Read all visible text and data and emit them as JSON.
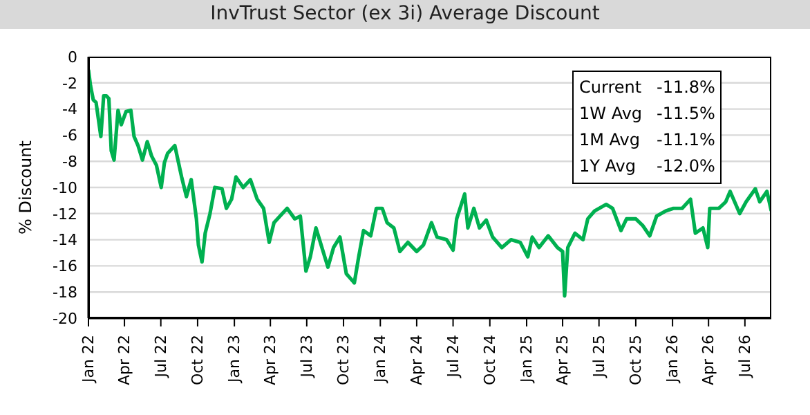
{
  "chart_data": {
    "type": "line",
    "title": "InvTrust Sector (ex 3i) Average Discount",
    "ylabel": "% Discount",
    "x": [
      "2022-01-01",
      "2022-01-06",
      "2022-01-13",
      "2022-01-20",
      "2022-02-01",
      "2022-02-08",
      "2022-02-15",
      "2022-02-21",
      "2022-02-27",
      "2022-03-06",
      "2022-03-16",
      "2022-03-24",
      "2022-04-05",
      "2022-04-17",
      "2022-04-25",
      "2022-05-05",
      "2022-05-16",
      "2022-05-28",
      "2022-06-08",
      "2022-06-20",
      "2022-07-02",
      "2022-07-10",
      "2022-07-18",
      "2022-08-05",
      "2022-08-22",
      "2022-09-03",
      "2022-09-15",
      "2022-09-28",
      "2022-10-03",
      "2022-10-12",
      "2022-10-20",
      "2022-11-01",
      "2022-11-13",
      "2022-12-01",
      "2022-12-12",
      "2022-12-25",
      "2023-01-05",
      "2023-01-23",
      "2023-02-10",
      "2023-02-27",
      "2023-03-15",
      "2023-03-29",
      "2023-04-10",
      "2023-04-25",
      "2023-05-13",
      "2023-06-01",
      "2023-06-15",
      "2023-06-29",
      "2023-07-10",
      "2023-07-24",
      "2023-08-08",
      "2023-08-23",
      "2023-09-06",
      "2023-09-22",
      "2023-10-08",
      "2023-10-28",
      "2023-11-08",
      "2023-11-20",
      "2023-12-08",
      "2023-12-22",
      "2024-01-06",
      "2024-01-18",
      "2024-02-04",
      "2024-02-19",
      "2024-03-10",
      "2024-04-01",
      "2024-04-18",
      "2024-05-08",
      "2024-05-22",
      "2024-06-15",
      "2024-07-01",
      "2024-07-10",
      "2024-07-30",
      "2024-08-07",
      "2024-08-22",
      "2024-09-05",
      "2024-09-22",
      "2024-10-08",
      "2024-10-31",
      "2024-11-23",
      "2024-12-16",
      "2025-01-04",
      "2025-01-15",
      "2025-02-01",
      "2025-02-24",
      "2025-03-19",
      "2025-04-01",
      "2025-04-06",
      "2025-04-14",
      "2025-05-02",
      "2025-05-22",
      "2025-06-03",
      "2025-06-20",
      "2025-07-19",
      "2025-08-04",
      "2025-08-25",
      "2025-09-08",
      "2025-10-01",
      "2025-10-18",
      "2025-11-05",
      "2025-11-22",
      "2025-12-15",
      "2026-01-03",
      "2026-01-25",
      "2026-02-15",
      "2026-02-27",
      "2026-03-18",
      "2026-03-30",
      "2026-04-04",
      "2026-04-27",
      "2026-05-14",
      "2026-05-25",
      "2026-06-18",
      "2026-07-04",
      "2026-07-27",
      "2026-08-07",
      "2026-08-25",
      "2026-09-05"
    ],
    "series": [
      {
        "color": "#00b050",
        "values": [
          -1.0,
          -2.2,
          -3.3,
          -3.5,
          -6.1,
          -3.0,
          -3.0,
          -3.2,
          -7.2,
          -7.9,
          -4.1,
          -5.2,
          -4.2,
          -4.1,
          -6.1,
          -6.8,
          -7.9,
          -6.5,
          -7.6,
          -8.3,
          -10.0,
          -8.1,
          -7.4,
          -6.8,
          -9.2,
          -10.7,
          -9.4,
          -12.4,
          -14.4,
          -15.7,
          -13.5,
          -12.0,
          -10.0,
          -10.1,
          -11.6,
          -10.9,
          -9.2,
          -10.0,
          -9.4,
          -10.9,
          -11.6,
          -14.2,
          -12.7,
          -12.2,
          -11.6,
          -12.4,
          -12.2,
          -16.4,
          -15.3,
          -13.1,
          -14.6,
          -16.1,
          -14.6,
          -13.8,
          -16.6,
          -17.3,
          -15.3,
          -13.3,
          -13.7,
          -11.6,
          -11.6,
          -12.7,
          -13.1,
          -14.9,
          -14.2,
          -14.9,
          -14.4,
          -12.7,
          -13.8,
          -14.0,
          -14.8,
          -12.4,
          -10.5,
          -13.1,
          -11.6,
          -13.1,
          -12.5,
          -13.8,
          -14.6,
          -14.0,
          -14.2,
          -15.3,
          -13.8,
          -14.6,
          -13.7,
          -14.6,
          -14.9,
          -18.3,
          -14.6,
          -13.5,
          -14.0,
          -12.4,
          -11.8,
          -11.3,
          -11.6,
          -13.3,
          -12.4,
          -12.4,
          -12.9,
          -13.7,
          -12.2,
          -11.8,
          -11.6,
          -11.6,
          -10.9,
          -13.5,
          -13.1,
          -14.6,
          -11.6,
          -11.6,
          -11.1,
          -10.3,
          -12.0,
          -11.1,
          -10.1,
          -11.1,
          -10.3,
          -11.8
        ]
      }
    ],
    "xlim": [
      "2022-01-01",
      "2026-09-05"
    ],
    "xticks": [
      {
        "value": "2022-01-01",
        "label": "Jan 22"
      },
      {
        "value": "2022-04-01",
        "label": "Apr 22"
      },
      {
        "value": "2022-07-01",
        "label": "Jul 22"
      },
      {
        "value": "2022-10-01",
        "label": "Oct 22"
      },
      {
        "value": "2023-01-01",
        "label": "Jan 23"
      },
      {
        "value": "2023-04-01",
        "label": "Apr 23"
      },
      {
        "value": "2023-07-01",
        "label": "Jul 23"
      },
      {
        "value": "2023-10-01",
        "label": "Oct 23"
      },
      {
        "value": "2024-01-01",
        "label": "Jan 24"
      },
      {
        "value": "2024-04-01",
        "label": "Apr 24"
      },
      {
        "value": "2024-07-01",
        "label": "Jul 24"
      },
      {
        "value": "2024-10-01",
        "label": "Oct 24"
      },
      {
        "value": "2025-01-01",
        "label": "Jan 25"
      },
      {
        "value": "2025-04-01",
        "label": "Apr 25"
      },
      {
        "value": "2025-07-01",
        "label": "Jul 25"
      },
      {
        "value": "2025-10-01",
        "label": "Oct 25"
      },
      {
        "value": "2026-01-01",
        "label": "Jan 26"
      },
      {
        "value": "2026-04-01",
        "label": "Apr 26"
      },
      {
        "value": "2026-07-01",
        "label": "Jul 26"
      }
    ],
    "ylim": [
      -20,
      0
    ],
    "yticks": [
      -20,
      -18,
      -16,
      -14,
      -12,
      -10,
      -8,
      -6,
      -4,
      -2,
      0
    ],
    "grid": "y",
    "line_style": "solid",
    "annotations": [
      "Current -11.8%",
      "1W Avg -11.5%",
      "1M Avg -11.1%",
      "1Y Avg -12.0%"
    ]
  }
}
